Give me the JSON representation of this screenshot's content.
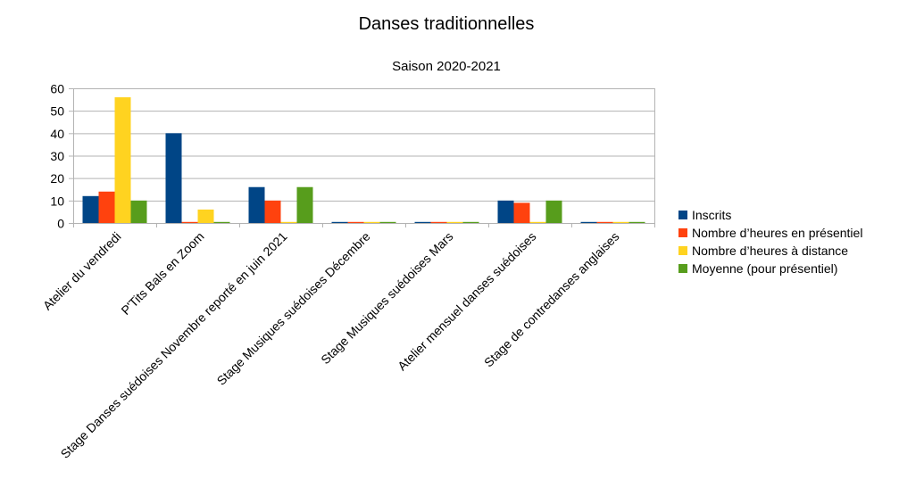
{
  "chart_data": {
    "type": "bar",
    "title": "Danses traditionnelles",
    "subtitle": "Saison 2020-2021",
    "xlabel": "",
    "ylabel": "",
    "ylim": [
      0,
      60
    ],
    "yticks": [
      0,
      10,
      20,
      30,
      40,
      50,
      60
    ],
    "grid": true,
    "legend_position": "right",
    "categories": [
      "Atelier du vendredi",
      "P'Tits Bals en Zoom",
      "Stage Danses suédoises Novembre reporté en juin 2021",
      "Stage Musiques suédoises Décembre",
      "Stage Musiques suédoises Mars",
      "Atelier mensuel danses suédoises",
      "Stage de contredanses anglaises"
    ],
    "series": [
      {
        "name": "Inscrits",
        "color": "#004586",
        "values": [
          12,
          40,
          16,
          0,
          0,
          10,
          0
        ]
      },
      {
        "name": "Nombre d’heures en présentiel",
        "color": "#ff420e",
        "values": [
          14,
          0,
          10,
          0,
          0,
          9,
          0
        ]
      },
      {
        "name": "Nombre d’heures à distance",
        "color": "#ffd320",
        "values": [
          56,
          6,
          0,
          0,
          0,
          0,
          0
        ]
      },
      {
        "name": "Moyenne (pour présentiel)",
        "color": "#579d1c",
        "values": [
          10,
          0,
          16,
          0,
          0,
          10,
          0
        ]
      }
    ]
  }
}
